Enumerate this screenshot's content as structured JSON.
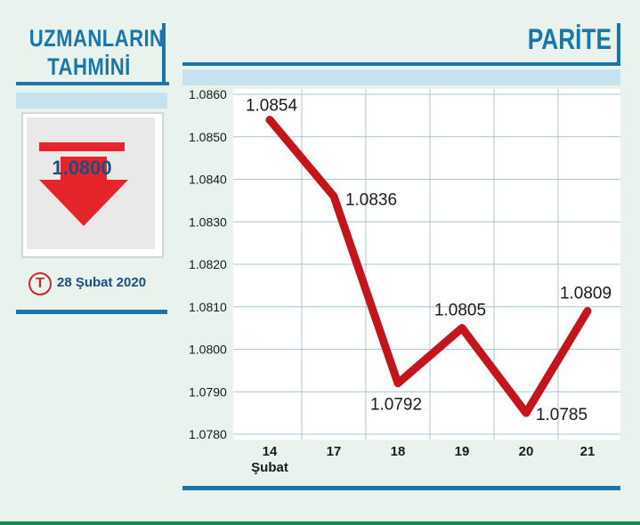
{
  "left_panel": {
    "title_line1": "UZMANLARIN",
    "title_line2": "TAHMİNİ",
    "forecast_value": "1.0800",
    "date_icon_letter": "T",
    "date": "28 Şubat 2020"
  },
  "right_panel": {
    "title": "PARİTE"
  },
  "colors": {
    "accent_blue": "#1a75a8",
    "line_red": "#c4141c",
    "arrow_red": "#e5252b",
    "background": "#e8f3ed"
  },
  "chart_data": {
    "type": "line",
    "title": "PARİTE",
    "categories": [
      "14",
      "17",
      "18",
      "19",
      "20",
      "21"
    ],
    "category_sublabel": "Şubat",
    "values": [
      1.0854,
      1.0836,
      1.0792,
      1.0805,
      1.0785,
      1.0809
    ],
    "value_labels": [
      "1.0854",
      "1.0836",
      "1.0792",
      "1.0805",
      "1.0785",
      "1.0809"
    ],
    "yticks": [
      "1.0780",
      "1.0790",
      "1.0800",
      "1.0810",
      "1.0820",
      "1.0830",
      "1.0840",
      "1.0850",
      "1.0860"
    ],
    "ylim": [
      1.078,
      1.086
    ],
    "grid": true,
    "xlabel": "",
    "ylabel": ""
  }
}
